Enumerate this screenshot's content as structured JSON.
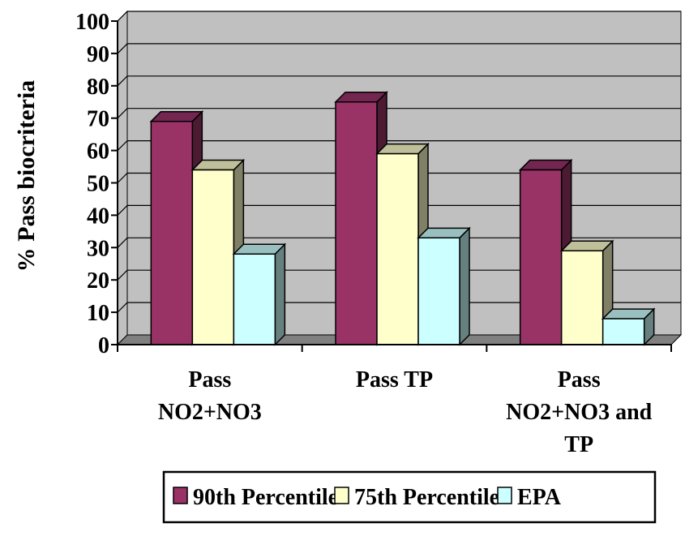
{
  "chart_data": {
    "type": "bar",
    "title": "",
    "xlabel": "",
    "ylabel": "% Pass biocriteria",
    "ylim": [
      0,
      100
    ],
    "yticks": [
      0,
      10,
      20,
      30,
      40,
      50,
      60,
      70,
      80,
      90,
      100
    ],
    "categories": [
      "Pass NO2+NO3",
      "Pass TP",
      "Pass NO2+NO3 and TP"
    ],
    "category_lines": [
      [
        "Pass",
        "NO2+NO3"
      ],
      [
        "Pass TP"
      ],
      [
        "Pass",
        "NO2+NO3 and",
        "TP"
      ]
    ],
    "series": [
      {
        "name": "90th Percentile",
        "values": [
          69,
          75,
          54
        ],
        "color": "#993366",
        "side_color": "#4d1a33",
        "top_color": "#732650"
      },
      {
        "name": "75th Percentile",
        "values": [
          54,
          59,
          29
        ],
        "color": "#ffffcc",
        "side_color": "#808066",
        "top_color": "#bfbf99"
      },
      {
        "name": "EPA",
        "values": [
          28,
          33,
          8
        ],
        "color": "#ccffff",
        "side_color": "#668080",
        "top_color": "#99bfbf"
      }
    ],
    "grid": true,
    "legend_position": "bottom",
    "plot_background": "#c0c0c0",
    "floor_color": "#808080"
  }
}
